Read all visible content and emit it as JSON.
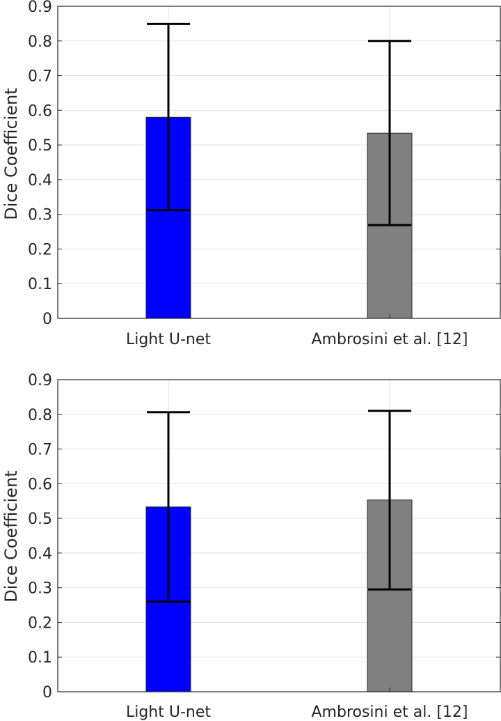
{
  "chart_data": [
    {
      "type": "bar",
      "categories": [
        "Light U-net",
        "Ambrosini et al. [12]"
      ],
      "values": [
        0.58,
        0.534
      ],
      "error_bars": [
        {
          "low": 0.312,
          "high": 0.849
        },
        {
          "low": 0.269,
          "high": 0.8
        }
      ],
      "bar_colors": [
        "#0000ff",
        "#808080"
      ],
      "title": "",
      "xlabel": "",
      "ylabel": "Dice Coefficient",
      "ylim": [
        0,
        0.9
      ],
      "yticks": [
        "0",
        "0.1",
        "0.2",
        "0.3",
        "0.4",
        "0.5",
        "0.6",
        "0.7",
        "0.8",
        "0.9"
      ],
      "grid": "horizontal"
    },
    {
      "type": "bar",
      "categories": [
        "Light U-net",
        "Ambrosini et al. [12]"
      ],
      "values": [
        0.533,
        0.553
      ],
      "error_bars": [
        {
          "low": 0.26,
          "high": 0.806
        },
        {
          "low": 0.295,
          "high": 0.81
        }
      ],
      "bar_colors": [
        "#0000ff",
        "#808080"
      ],
      "title": "",
      "xlabel": "",
      "ylabel": "Dice Coefficient",
      "ylim": [
        0,
        0.9
      ],
      "yticks": [
        "0",
        "0.1",
        "0.2",
        "0.3",
        "0.4",
        "0.5",
        "0.6",
        "0.7",
        "0.8",
        "0.9"
      ],
      "grid": "horizontal"
    }
  ]
}
